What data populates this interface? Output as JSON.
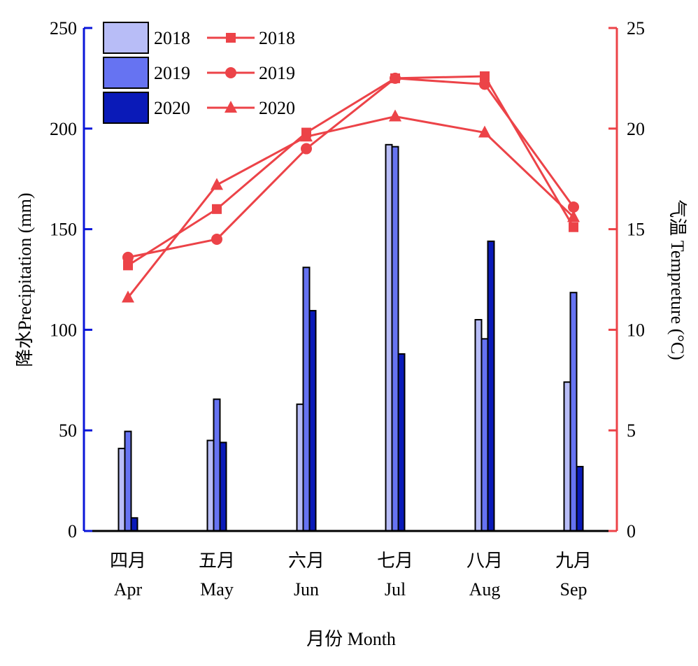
{
  "chart_data": {
    "type": "bar",
    "categories_cn": [
      "四月",
      "五月",
      "六月",
      "七月",
      "八月",
      "九月"
    ],
    "categories": [
      "Apr",
      "May",
      "Jun",
      "Jul",
      "Aug",
      "Sep"
    ],
    "xlabel": "月份 Month",
    "ylabel_left": "降水Precipitation (mm)",
    "ylabel_right": "气温 Tempreture (°C)",
    "ylim_left": [
      0,
      250
    ],
    "ylim_right": [
      0,
      25
    ],
    "yticks_left": [
      "0",
      "50",
      "100",
      "150",
      "200",
      "250"
    ],
    "yticks_right": [
      "0",
      "5",
      "10",
      "15",
      "20",
      "25"
    ],
    "grid": false,
    "legend_position": "top-left",
    "bar_series": [
      {
        "name": "2018",
        "color": "#b8bdf7",
        "values": [
          41,
          45,
          63,
          192,
          105,
          74
        ]
      },
      {
        "name": "2019",
        "color": "#6673f2",
        "values": [
          49.5,
          65.5,
          131,
          191,
          95.5,
          118.5
        ]
      },
      {
        "name": "2020",
        "color": "#0a1ab8",
        "values": [
          6.5,
          44,
          109.5,
          88,
          144,
          32
        ]
      }
    ],
    "line_series": [
      {
        "name": "2018",
        "marker": "square",
        "color": "#ec4348",
        "values": [
          13.2,
          16.0,
          19.8,
          22.5,
          22.6,
          15.1
        ]
      },
      {
        "name": "2019",
        "marker": "circle",
        "color": "#ec4348",
        "values": [
          13.6,
          14.5,
          19.0,
          22.5,
          22.2,
          16.1
        ]
      },
      {
        "name": "2020",
        "marker": "triangle",
        "color": "#ec4348",
        "values": [
          11.6,
          17.2,
          19.6,
          20.6,
          19.8,
          15.6
        ]
      }
    ],
    "left_axis_color": "#0a16d8",
    "right_axis_color": "#ec4348"
  }
}
